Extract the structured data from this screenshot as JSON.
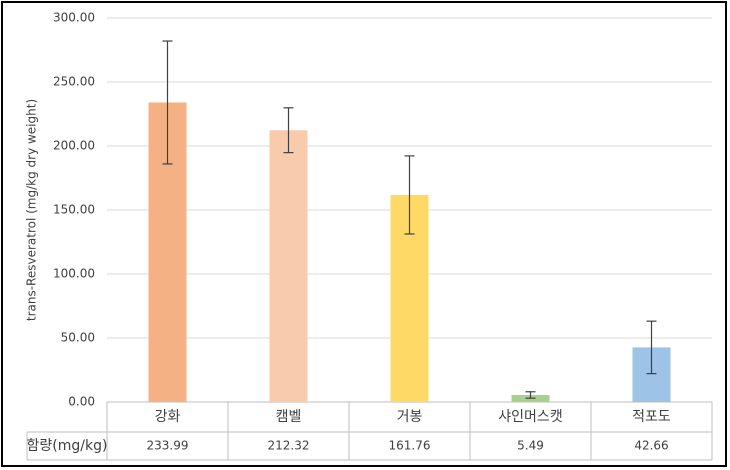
{
  "chart_data": {
    "type": "bar",
    "y_label": "trans-Resveratrol (mg/kg dry weight)",
    "categories": [
      "강화",
      "캠벨",
      "거봉",
      "샤인머스캣",
      "적포도"
    ],
    "values": [
      233.99,
      212.32,
      161.76,
      5.49,
      42.66
    ],
    "errors": [
      48,
      17.5,
      30.5,
      2.5,
      20.5
    ],
    "colors": [
      "#f4b183",
      "#f8cbad",
      "#ffd966",
      "#a9d18e",
      "#9dc3e6"
    ],
    "ylim": [
      0,
      300
    ],
    "yticks": [
      {
        "value": 0,
        "label": "0.00"
      },
      {
        "value": 50,
        "label": "50.00"
      },
      {
        "value": 100,
        "label": "100.00"
      },
      {
        "value": 150,
        "label": "150.00"
      },
      {
        "value": 200,
        "label": "200.00"
      },
      {
        "value": 250,
        "label": "250.00"
      },
      {
        "value": 300,
        "label": "300.00"
      }
    ],
    "grid": true,
    "table_label": "함량(mg/kg)"
  }
}
